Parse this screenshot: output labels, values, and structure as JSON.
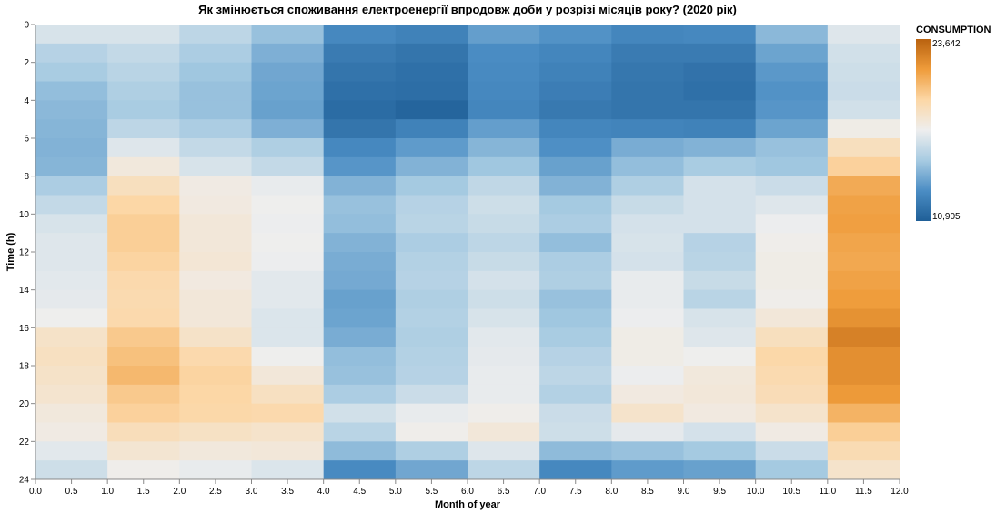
{
  "chart_data": {
    "type": "heatmap",
    "title": "Як змінюється споживання електроенергії впродовж доби у розрізі місяців року? (2020 рік)",
    "xlabel": "Month of year",
    "ylabel": "Time (h)",
    "xlim": [
      0,
      12
    ],
    "ylim": [
      0,
      24
    ],
    "x_ticks": [
      "0.0",
      "0.5",
      "1.0",
      "1.5",
      "2.0",
      "2.5",
      "3.0",
      "3.5",
      "4.0",
      "4.5",
      "5.0",
      "5.5",
      "6.0",
      "6.5",
      "7.0",
      "7.5",
      "8.0",
      "8.5",
      "9.0",
      "9.5",
      "10.0",
      "10.5",
      "11.0",
      "11.5",
      "12.0"
    ],
    "y_ticks": [
      "0",
      "2",
      "4",
      "6",
      "8",
      "10",
      "12",
      "14",
      "16",
      "18",
      "20",
      "22",
      "24"
    ],
    "legend": {
      "title": "CONSUMPTION",
      "max_label": "23,642",
      "min_label": "10,905",
      "max": 23642,
      "min": 10905,
      "placement": "top-right"
    },
    "color_scale": {
      "type": "diverging",
      "stops": [
        "#1f5f97",
        "#4b8dc4",
        "#a7cbe2",
        "#eeeeee",
        "#fcd7a6",
        "#ef9c3b",
        "#b9620f"
      ]
    },
    "months": [
      "0.5",
      "1.5",
      "2.5",
      "3.5",
      "4.5",
      "5.5",
      "6.5",
      "7.5",
      "8.5",
      "9.5",
      "10.5",
      "11.5"
    ],
    "hours": [
      0,
      1,
      2,
      3,
      4,
      5,
      6,
      7,
      8,
      9,
      10,
      11,
      12,
      13,
      14,
      15,
      16,
      17,
      18,
      19,
      20,
      21,
      22,
      23
    ],
    "values": [
      [
        16600,
        16600,
        15800,
        14800,
        12800,
        12500,
        13600,
        13200,
        12700,
        12800,
        14500,
        16800
      ],
      [
        15600,
        16000,
        15300,
        14200,
        12200,
        11900,
        13000,
        12700,
        12200,
        12200,
        13800,
        16400
      ],
      [
        15200,
        15700,
        15000,
        13900,
        11900,
        11700,
        12900,
        12500,
        12000,
        11800,
        13400,
        16300
      ],
      [
        14700,
        15400,
        14800,
        13800,
        11700,
        11600,
        12800,
        12300,
        11900,
        11700,
        13200,
        16200
      ],
      [
        14500,
        15200,
        14800,
        13700,
        11500,
        11200,
        12700,
        12100,
        11900,
        11900,
        13300,
        16400
      ],
      [
        14400,
        15800,
        15300,
        14200,
        11900,
        12500,
        13600,
        12700,
        12600,
        12500,
        13800,
        17500
      ],
      [
        14300,
        16800,
        16000,
        15400,
        12800,
        13500,
        14400,
        13100,
        14100,
        14300,
        14800,
        18700
      ],
      [
        14400,
        17800,
        16600,
        16000,
        13300,
        14300,
        15000,
        13700,
        14700,
        15200,
        15000,
        19600
      ],
      [
        15300,
        18700,
        17600,
        17100,
        14300,
        15100,
        15900,
        14300,
        15400,
        16500,
        16200,
        21000
      ],
      [
        16000,
        19400,
        17700,
        17300,
        14800,
        15600,
        16300,
        15100,
        16100,
        16500,
        16800,
        21300
      ],
      [
        16600,
        19700,
        17900,
        17200,
        14700,
        15700,
        16100,
        15300,
        16500,
        16500,
        17200,
        21400
      ],
      [
        16800,
        19700,
        17900,
        17300,
        14300,
        15300,
        15800,
        14700,
        16600,
        15600,
        17400,
        21200
      ],
      [
        16800,
        19500,
        18000,
        17200,
        14100,
        15500,
        16100,
        15300,
        16500,
        15700,
        17500,
        21100
      ],
      [
        16900,
        19200,
        17700,
        16900,
        14000,
        15600,
        16500,
        15400,
        17100,
        16100,
        17500,
        21300
      ],
      [
        17000,
        19100,
        17900,
        16900,
        13700,
        15400,
        16300,
        14800,
        17100,
        15700,
        17400,
        21500
      ],
      [
        17300,
        19200,
        17900,
        16700,
        13800,
        15500,
        16600,
        15000,
        17200,
        16600,
        17900,
        21900
      ],
      [
        18400,
        19900,
        18400,
        16700,
        14100,
        15400,
        16900,
        15200,
        17500,
        16800,
        18700,
        22500
      ],
      [
        18600,
        20200,
        19200,
        17300,
        14700,
        15500,
        17000,
        15600,
        17500,
        17300,
        19300,
        22000
      ],
      [
        18400,
        20500,
        19500,
        17900,
        14800,
        15600,
        17100,
        15800,
        17200,
        17800,
        19100,
        22000
      ],
      [
        18200,
        19900,
        19400,
        18600,
        15300,
        16200,
        17100,
        15500,
        17700,
        17900,
        18900,
        21600
      ],
      [
        17800,
        19600,
        19300,
        19200,
        16400,
        17100,
        17400,
        16200,
        18300,
        17700,
        18300,
        20700
      ],
      [
        17600,
        18800,
        18500,
        18300,
        15700,
        17400,
        17900,
        16300,
        17000,
        16500,
        17600,
        19700
      ],
      [
        16900,
        18100,
        17800,
        17900,
        14600,
        15400,
        16800,
        14600,
        14800,
        15100,
        16200,
        19000
      ],
      [
        16300,
        17400,
        17100,
        16700,
        12900,
        13900,
        15800,
        12800,
        13500,
        13700,
        15100,
        18300
      ]
    ]
  }
}
